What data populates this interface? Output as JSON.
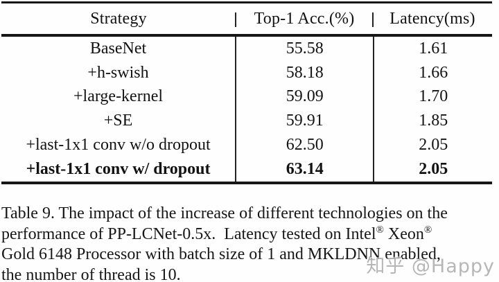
{
  "table": {
    "columns": [
      "Strategy",
      "Top-1 Acc.(%)",
      "Latency(ms)"
    ],
    "rows": [
      {
        "strategy": "BaseNet",
        "acc": "55.58",
        "latency": "1.61"
      },
      {
        "strategy": "+h-swish",
        "acc": "58.18",
        "latency": "1.66"
      },
      {
        "strategy": "+large-kernel",
        "acc": "59.09",
        "latency": "1.70"
      },
      {
        "strategy": "+SE",
        "acc": "59.91",
        "latency": "1.85"
      },
      {
        "strategy": "+last-1x1 conv w/o dropout",
        "acc": "62.50",
        "latency": "2.05"
      },
      {
        "strategy": "+last-1x1 conv w/ dropout",
        "acc": "63.14",
        "latency": "2.05"
      }
    ]
  },
  "caption": {
    "line1": "Table 9. The impact of the increase of different technologies on the",
    "line2_seg1": "performance of PP-LCNet-0.5x.  Latency tested on Intel",
    "reg_mark": "®",
    "line2_seg2": " Xeon",
    "line3": "Gold 6148 Processor with batch size of 1 and MKLDNN enabled,",
    "line4": "the number of thread is 10."
  },
  "watermark": {
    "text": "知乎 @Happy"
  },
  "colors": {
    "text": "#121212",
    "rule": "#161616",
    "watermark_gray": "#9e9e9e",
    "background": "#fefefe"
  }
}
